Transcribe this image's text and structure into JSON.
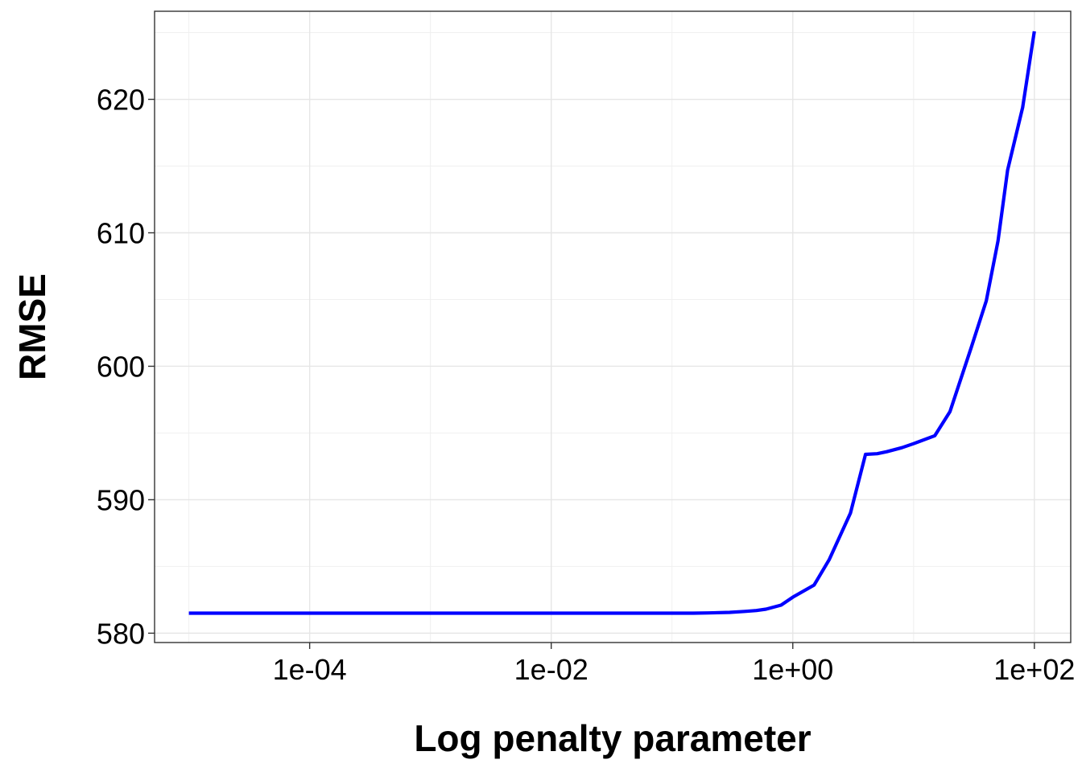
{
  "chart_data": {
    "type": "line",
    "title": "",
    "xlabel": "Log penalty parameter",
    "ylabel": "RMSE",
    "x_scale": "log10",
    "xlim": [
      5.2e-06,
      200
    ],
    "ylim": [
      579.3,
      626.6
    ],
    "grid": true,
    "legend": "none",
    "x_ticks": [
      {
        "value": 0.0001,
        "label": "1e-04"
      },
      {
        "value": 0.01,
        "label": "1e-02"
      },
      {
        "value": 1,
        "label": "1e+00"
      },
      {
        "value": 100,
        "label": "1e+02"
      }
    ],
    "y_ticks": [
      {
        "value": 580,
        "label": "580"
      },
      {
        "value": 590,
        "label": "590"
      },
      {
        "value": 600,
        "label": "600"
      },
      {
        "value": 610,
        "label": "610"
      },
      {
        "value": 620,
        "label": "620"
      }
    ],
    "series": [
      {
        "color": "#0000ff",
        "x": [
          1e-05,
          0.0001,
          0.001,
          0.01,
          0.1,
          0.15,
          0.2,
          0.3,
          0.4,
          0.5,
          0.6,
          0.8,
          1.0,
          1.5,
          2.0,
          3.0,
          4.0,
          5.0,
          6.0,
          8.0,
          10.0,
          15.0,
          20.0,
          30.0,
          40.0,
          50.0,
          60.0,
          80.0,
          100.0
        ],
        "y": [
          581.5,
          581.5,
          581.5,
          581.5,
          581.5,
          581.5,
          581.52,
          581.56,
          581.63,
          581.7,
          581.8,
          582.1,
          582.7,
          583.6,
          585.5,
          589.0,
          593.4,
          593.45,
          593.6,
          593.9,
          594.2,
          594.8,
          596.6,
          601.4,
          604.9,
          609.4,
          614.7,
          619.4,
          625.1
        ]
      }
    ]
  }
}
